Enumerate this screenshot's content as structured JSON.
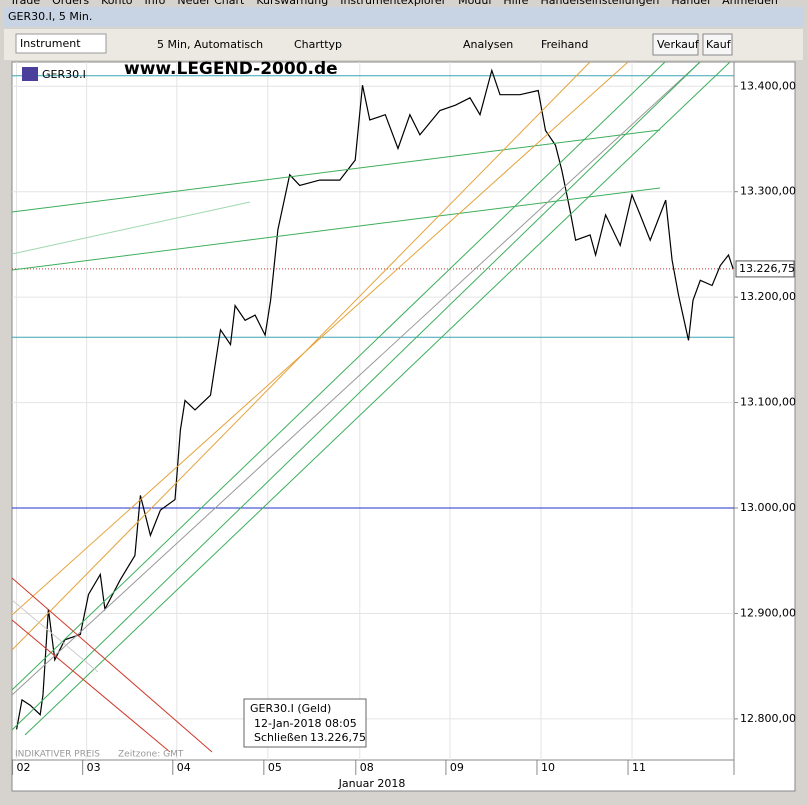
{
  "menu": [
    "Trade",
    "Orders",
    "Konto",
    "Info",
    "Neuer Chart",
    "Kurswarnung",
    "Instrumentexplorer",
    "Modul",
    "Hilfe",
    "Handelseinstellungen",
    "Handel",
    "Anmelden"
  ],
  "window_title": "GER30.I, 5 Min.",
  "toolbar": {
    "instrument": "Instrument",
    "interval": "5 Min, Automatisch",
    "chart_type": "Charttyp",
    "analyses": "Analysen",
    "freehand": "Freihand",
    "sell": "Verkauf",
    "buy": "Kauf"
  },
  "chart_data": {
    "type": "line",
    "instrument_label": "GER30.I",
    "watermark": "www.LEGEND-2000.de",
    "x": [
      0.05,
      0.11,
      0.2,
      0.31,
      0.34,
      0.4,
      0.47,
      0.58,
      0.75,
      0.84,
      0.97,
      1.02,
      1.19,
      1.35,
      1.41,
      1.52,
      1.63,
      1.79,
      1.85,
      1.9,
      2.01,
      2.18,
      2.29,
      2.4,
      2.45,
      2.56,
      2.67,
      2.78,
      2.84,
      2.92,
      3.05,
      3.16,
      3.38,
      3.6,
      3.77,
      3.85,
      3.93,
      4.1,
      4.24,
      4.37,
      4.48,
      4.7,
      4.87,
      5.03,
      5.14,
      5.27,
      5.36,
      5.58,
      5.78,
      5.86,
      5.97,
      6.04,
      6.13,
      6.19,
      6.35,
      6.41,
      6.52,
      6.68,
      6.81,
      6.9,
      7.01,
      7.18,
      7.25,
      7.32,
      7.43,
      7.48,
      7.56,
      7.69,
      7.78,
      7.87,
      7.92
    ],
    "series": [
      {
        "name": "GER30.I",
        "color": "#000000",
        "values": [
          12790,
          12818,
          12813,
          12804,
          12823,
          12904,
          12856,
          12875,
          12880,
          12918,
          12937,
          12904,
          12932,
          12955,
          13012,
          12974,
          12998,
          13008,
          13074,
          13102,
          13093,
          13107,
          13169,
          13155,
          13192,
          13178,
          13183,
          13164,
          13197,
          13264,
          13316,
          13306,
          13311,
          13311,
          13330,
          13401,
          13368,
          13373,
          13341,
          13373,
          13354,
          13377,
          13382,
          13389,
          13373,
          13415,
          13392,
          13392,
          13396,
          13358,
          13344,
          13320,
          13282,
          13254,
          13259,
          13240,
          13278,
          13249,
          13297,
          13278,
          13254,
          13292,
          13235,
          13202,
          13159,
          13197,
          13216,
          13211,
          13230,
          13240,
          13227
        ]
      }
    ],
    "xlim": [
      0,
      7.93
    ],
    "xticks": [
      {
        "value": 0.05,
        "label": "02"
      },
      {
        "value": 0.82,
        "label": "03"
      },
      {
        "value": 1.81,
        "label": "04"
      },
      {
        "value": 2.81,
        "label": "05"
      },
      {
        "value": 3.82,
        "label": "08"
      },
      {
        "value": 4.81,
        "label": "09"
      },
      {
        "value": 5.81,
        "label": "10"
      },
      {
        "value": 6.81,
        "label": "11"
      }
    ],
    "xlabel": "Januar 2018",
    "ylim": [
      12761,
      13423
    ],
    "yticks": [
      {
        "value": 12800,
        "label": "12.800,00"
      },
      {
        "value": 12900,
        "label": "12.900,00"
      },
      {
        "value": 13000,
        "label": "13.000,00"
      },
      {
        "value": 13100,
        "label": "13.100,00"
      },
      {
        "value": 13200,
        "label": "13.200,00"
      },
      {
        "value": 13300,
        "label": "13.300,00"
      },
      {
        "value": 13400,
        "label": "13.400,00"
      }
    ],
    "grid": true,
    "hlines": [
      {
        "value": 13410,
        "color": "#3aa6b5"
      },
      {
        "value": 13162,
        "color": "#3aa6b5"
      },
      {
        "value": 13000,
        "color": "#2233cc"
      }
    ],
    "last_price": {
      "value": 13226.75,
      "label": "13.226,75",
      "color": "#c03030"
    },
    "tooltip": {
      "title": "GER30.I (Geld)",
      "time": "12-Jan-2018 08:05",
      "field": "Schließen",
      "value": "13.226,75"
    },
    "footer": {
      "note": "INDIKATIVER PREIS",
      "timezone": "Zeitzone: GMT"
    }
  }
}
